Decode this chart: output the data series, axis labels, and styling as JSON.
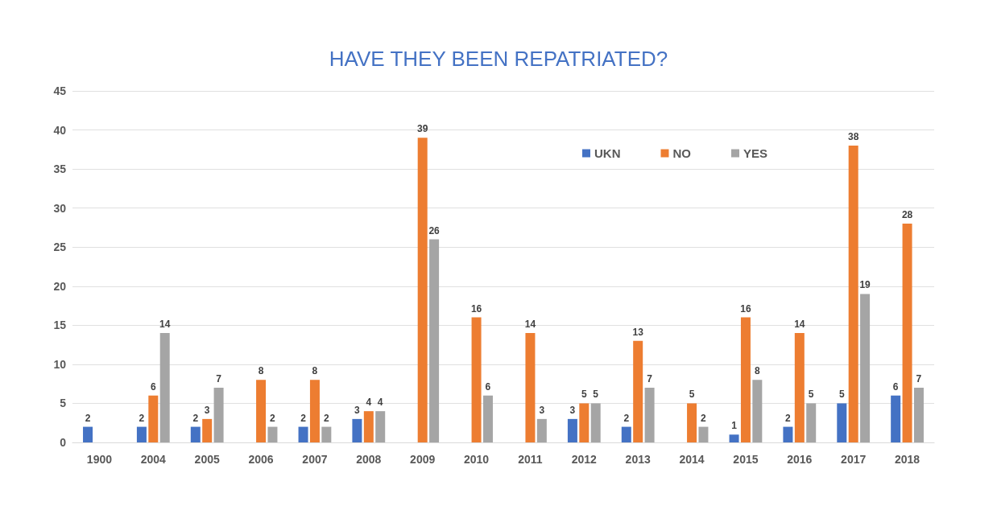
{
  "chart_data": {
    "type": "bar",
    "title": "HAVE THEY BEEN REPATRIATED?",
    "categories": [
      "1900",
      "2004",
      "2005",
      "2006",
      "2007",
      "2008",
      "2009",
      "2010",
      "2011",
      "2012",
      "2013",
      "2014",
      "2015",
      "2016",
      "2017",
      "2018"
    ],
    "series": [
      {
        "name": "UKN",
        "color": "#4472c4",
        "values": [
          2,
          2,
          2,
          null,
          2,
          3,
          null,
          null,
          null,
          3,
          2,
          null,
          1,
          2,
          5,
          6
        ]
      },
      {
        "name": "NO",
        "color": "#ed7d31",
        "values": [
          null,
          6,
          3,
          8,
          8,
          4,
          39,
          16,
          14,
          5,
          13,
          5,
          16,
          14,
          38,
          28
        ]
      },
      {
        "name": "YES",
        "color": "#a5a5a5",
        "values": [
          null,
          14,
          7,
          2,
          2,
          4,
          26,
          6,
          3,
          5,
          7,
          2,
          8,
          5,
          19,
          7
        ]
      }
    ],
    "ylim": [
      0,
      45
    ],
    "yticks": [
      0,
      5,
      10,
      15,
      20,
      25,
      30,
      35,
      40,
      45
    ],
    "grid": "y",
    "legend": "top right",
    "data_labels": true
  }
}
